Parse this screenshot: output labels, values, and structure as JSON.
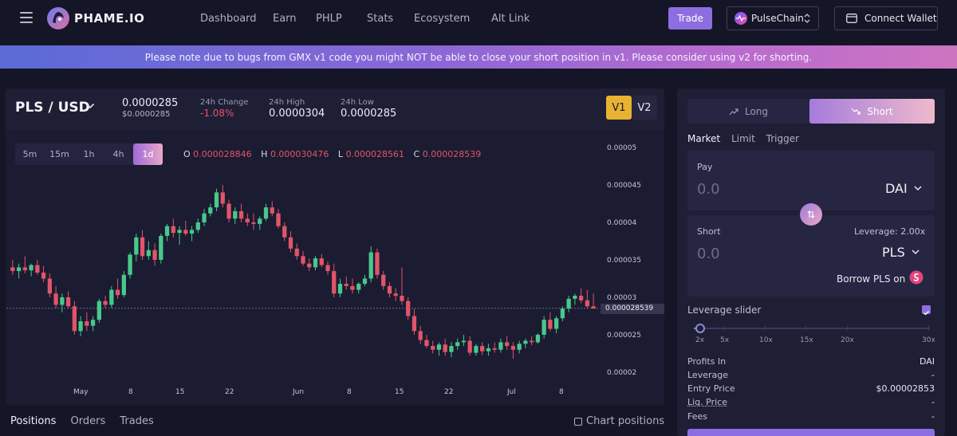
{
  "nav": {
    "brand": "PHAME.IO",
    "items": [
      "Dashboard",
      "Earn",
      "PHLP",
      "Stats",
      "Ecosystem",
      "Alt Link"
    ],
    "trade_label": "Trade",
    "chain_label": "PulseChain",
    "wallet_label": "Connect Wallet"
  },
  "banner": {
    "text": "Please note due to bugs from GMX v1 code you might NOT be able to close your short position in v1. Please consider using v2 for shorting."
  },
  "pair": {
    "name": "PLS / USD",
    "price": "0.0000285",
    "price_usd": "$0.0000285",
    "change_label": "24h Change",
    "change_value": "-1.08%",
    "high_label": "24h High",
    "high_value": "0.0000304",
    "low_label": "24h Low",
    "low_value": "0.0000285",
    "v1": "V1",
    "v2": "V2"
  },
  "timeframes": [
    "5m",
    "15m",
    "1h",
    "4h",
    "1d"
  ],
  "active_timeframe": "1d",
  "ohlc": {
    "o_label": "O",
    "o": "0.000028846",
    "h_label": "H",
    "h": "0.000030476",
    "l_label": "L",
    "l": "0.000028561",
    "c_label": "C",
    "c": "0.000028539"
  },
  "chart_data": {
    "type": "candlestick",
    "y_ticks": [
      "0.00005",
      "0.000045",
      "0.00004",
      "0.000035",
      "0.00003",
      "0.000025",
      "0.00002"
    ],
    "ylim": [
      2e-05,
      5e-05
    ],
    "x_ticks": [
      "May",
      "8",
      "15",
      "22",
      "Jun",
      "8",
      "15",
      "22",
      "Jul",
      "8"
    ],
    "current_price_label": "0.000028539",
    "current_price": 2.8539e-05,
    "colors": {
      "up": "#47c98b",
      "down": "#e0556a"
    },
    "candles": [
      [
        3.4e-05,
        3.5e-05,
        3.3e-05,
        3.35e-05
      ],
      [
        3.35e-05,
        3.45e-05,
        3.25e-05,
        3.4e-05
      ],
      [
        3.4e-05,
        3.55e-05,
        3.32e-05,
        3.36e-05
      ],
      [
        3.36e-05,
        3.45e-05,
        3.28e-05,
        3.43e-05
      ],
      [
        3.43e-05,
        3.5e-05,
        3.3e-05,
        3.33e-05
      ],
      [
        3.33e-05,
        3.42e-05,
        3.2e-05,
        3.25e-05
      ],
      [
        3.25e-05,
        3.32e-05,
        3e-05,
        3.05e-05
      ],
      [
        3.05e-05,
        3.15e-05,
        2.85e-05,
        2.9e-05
      ],
      [
        2.9e-05,
        3.05e-05,
        2.8e-05,
        3e-05
      ],
      [
        3e-05,
        3.08e-05,
        2.85e-05,
        2.88e-05
      ],
      [
        2.88e-05,
        2.95e-05,
        2.5e-05,
        2.55e-05
      ],
      [
        2.55e-05,
        2.75e-05,
        2.48e-05,
        2.68e-05
      ],
      [
        2.68e-05,
        2.8e-05,
        2.55e-05,
        2.62e-05
      ],
      [
        2.62e-05,
        2.75e-05,
        2.55e-05,
        2.7e-05
      ],
      [
        2.7e-05,
        2.98e-05,
        2.66e-05,
        2.95e-05
      ],
      [
        2.95e-05,
        3.02e-05,
        2.85e-05,
        2.9e-05
      ],
      [
        2.9e-05,
        3.15e-05,
        2.86e-05,
        3.1e-05
      ],
      [
        3.1e-05,
        3.25e-05,
        2.98e-05,
        3.03e-05
      ],
      [
        3.03e-05,
        3.35e-05,
        3e-05,
        3.3e-05
      ],
      [
        3.3e-05,
        3.6e-05,
        3.25e-05,
        3.57e-05
      ],
      [
        3.57e-05,
        3.85e-05,
        3.48e-05,
        3.8e-05
      ],
      [
        3.8e-05,
        3.9e-05,
        3.5e-05,
        3.55e-05
      ],
      [
        3.55e-05,
        3.75e-05,
        3.5e-05,
        3.63e-05
      ],
      [
        3.63e-05,
        3.72e-05,
        3.42e-05,
        3.5e-05
      ],
      [
        3.5e-05,
        3.85e-05,
        3.45e-05,
        3.82e-05
      ],
      [
        3.82e-05,
        3.98e-05,
        3.75e-05,
        3.95e-05
      ],
      [
        3.95e-05,
        4.05e-05,
        3.8e-05,
        3.86e-05
      ],
      [
        3.86e-05,
        3.95e-05,
        3.7e-05,
        3.9e-05
      ],
      [
        3.9e-05,
        4.02e-05,
        3.82e-05,
        3.85e-05
      ],
      [
        3.85e-05,
        3.95e-05,
        3.75e-05,
        3.9e-05
      ],
      [
        3.9e-05,
        4.05e-05,
        3.86e-05,
        4e-05
      ],
      [
        4e-05,
        4.18e-05,
        3.95e-05,
        4.12e-05
      ],
      [
        4.12e-05,
        4.25e-05,
        4.08e-05,
        4.2e-05
      ],
      [
        4.2e-05,
        4.45e-05,
        4.15e-05,
        4.4e-05
      ],
      [
        4.4e-05,
        4.5e-05,
        4.2e-05,
        4.25e-05
      ],
      [
        4.25e-05,
        4.3e-05,
        4e-05,
        4.05e-05
      ],
      [
        4.05e-05,
        4.2e-05,
        3.98e-05,
        4.15e-05
      ],
      [
        4.15e-05,
        4.25e-05,
        4e-05,
        4.05e-05
      ],
      [
        4.05e-05,
        4.12e-05,
        3.95e-05,
        4e-05
      ],
      [
        4e-05,
        4.12e-05,
        3.9e-05,
        3.98e-05
      ],
      [
        3.98e-05,
        4.08e-05,
        3.9e-05,
        4.05e-05
      ],
      [
        4.05e-05,
        4.25e-05,
        4.02e-05,
        4.2e-05
      ],
      [
        4.2e-05,
        4.28e-05,
        4.08e-05,
        4.12e-05
      ],
      [
        4.12e-05,
        4.18e-05,
        3.92e-05,
        3.95e-05
      ],
      [
        3.95e-05,
        4e-05,
        3.75e-05,
        3.8e-05
      ],
      [
        3.8e-05,
        3.88e-05,
        3.6e-05,
        3.65e-05
      ],
      [
        3.65e-05,
        3.72e-05,
        3.5e-05,
        3.55e-05
      ],
      [
        3.55e-05,
        3.62e-05,
        3.42e-05,
        3.45e-05
      ],
      [
        3.45e-05,
        3.52e-05,
        3.35e-05,
        3.4e-05
      ],
      [
        3.4e-05,
        3.55e-05,
        3.36e-05,
        3.52e-05
      ],
      [
        3.52e-05,
        3.58e-05,
        3.4e-05,
        3.43e-05
      ],
      [
        3.43e-05,
        3.48e-05,
        3.3e-05,
        3.35e-05
      ],
      [
        3.35e-05,
        3.45e-05,
        3e-05,
        3.05e-05
      ],
      [
        3.05e-05,
        3.25e-05,
        3e-05,
        3.18e-05
      ],
      [
        3.18e-05,
        3.28e-05,
        3.1e-05,
        3.15e-05
      ],
      [
        3.15e-05,
        3.25e-05,
        3.05e-05,
        3.1e-05
      ],
      [
        3.1e-05,
        3.2e-05,
        3.05e-05,
        3.18e-05
      ],
      [
        3.18e-05,
        3.3e-05,
        3.15e-05,
        3.25e-05
      ],
      [
        3.25e-05,
        3.68e-05,
        3.2e-05,
        3.6e-05
      ],
      [
        3.6e-05,
        3.65e-05,
        3.25e-05,
        3.3e-05
      ],
      [
        3.3e-05,
        3.35e-05,
        3.1e-05,
        3.15e-05
      ],
      [
        3.15e-05,
        3.2e-05,
        3e-05,
        3.05e-05
      ],
      [
        3.05e-05,
        3.12e-05,
        2.95e-05,
        3.02e-05
      ],
      [
        3.02e-05,
        3.4e-05,
        2.9e-05,
        2.95e-05
      ],
      [
        2.95e-05,
        3e-05,
        2.7e-05,
        2.75e-05
      ],
      [
        2.75e-05,
        2.85e-05,
        2.5e-05,
        2.55e-05
      ],
      [
        2.55e-05,
        2.62e-05,
        2.38e-05,
        2.43e-05
      ],
      [
        2.43e-05,
        2.5e-05,
        2.32e-05,
        2.35e-05
      ],
      [
        2.35e-05,
        2.42e-05,
        2.25e-05,
        2.3e-05
      ],
      [
        2.3e-05,
        2.4e-05,
        2.22e-05,
        2.37e-05
      ],
      [
        2.37e-05,
        2.45e-05,
        2.22e-05,
        2.27e-05
      ],
      [
        2.27e-05,
        2.4e-05,
        2.2e-05,
        2.35e-05
      ],
      [
        2.35e-05,
        2.45e-05,
        2.3e-05,
        2.4e-05
      ],
      [
        2.4e-05,
        2.5e-05,
        2.35e-05,
        2.42e-05
      ],
      [
        2.42e-05,
        2.48e-05,
        2.22e-05,
        2.26e-05
      ],
      [
        2.26e-05,
        2.38e-05,
        2.22e-05,
        2.35e-05
      ],
      [
        2.35e-05,
        2.4e-05,
        2.23e-05,
        2.28e-05
      ],
      [
        2.28e-05,
        2.38e-05,
        2.22e-05,
        2.32e-05
      ],
      [
        2.32e-05,
        2.4e-05,
        2.26e-05,
        2.3e-05
      ],
      [
        2.3e-05,
        2.45e-05,
        2.26e-05,
        2.4e-05
      ],
      [
        2.4e-05,
        2.48e-05,
        2.3e-05,
        2.35e-05
      ],
      [
        2.35e-05,
        2.4e-05,
        2.18e-05,
        2.3e-05
      ],
      [
        2.3e-05,
        2.42e-05,
        2.25e-05,
        2.38e-05
      ],
      [
        2.38e-05,
        2.45e-05,
        2.32e-05,
        2.42e-05
      ],
      [
        2.42e-05,
        2.48e-05,
        2.36e-05,
        2.4e-05
      ],
      [
        2.4e-05,
        2.52e-05,
        2.38e-05,
        2.5e-05
      ],
      [
        2.5e-05,
        2.75e-05,
        2.45e-05,
        2.7e-05
      ],
      [
        2.7e-05,
        2.8e-05,
        2.55e-05,
        2.58e-05
      ],
      [
        2.58e-05,
        2.75e-05,
        2.52e-05,
        2.72e-05
      ],
      [
        2.72e-05,
        2.88e-05,
        2.68e-05,
        2.85e-05
      ],
      [
        2.85e-05,
        3.02e-05,
        2.8e-05,
        2.98e-05
      ],
      [
        2.98e-05,
        3.05e-05,
        2.9e-05,
        3.02e-05
      ],
      [
        3.02e-05,
        3.12e-05,
        2.92e-05,
        2.96e-05
      ],
      [
        2.96e-05,
        3.1e-05,
        2.85e-05,
        2.88e-05
      ],
      [
        2.88e-05,
        3.05e-05,
        2.85e-05,
        2.85e-05
      ]
    ]
  },
  "bottom": {
    "tabs": [
      "Positions",
      "Orders",
      "Trades"
    ],
    "chart_positions_label": "Chart positions"
  },
  "trade": {
    "long_label": "Long",
    "short_label": "Short",
    "order_types": [
      "Market",
      "Limit",
      "Trigger"
    ],
    "pay_label": "Pay",
    "pay_amount_placeholder": "0.0",
    "pay_token": "DAI",
    "short_label_field": "Short",
    "leverage_label": "Leverage: 2.00x",
    "short_amount_placeholder": "0.0",
    "short_token": "PLS",
    "borrow_label": "Borrow PLS on",
    "leverage_slider_label": "Leverage slider",
    "leverage_ticks": [
      "2x",
      "5x",
      "10x",
      "15x",
      "20x",
      "30x"
    ],
    "leverage_value": 2,
    "info": [
      {
        "label": "Profits In",
        "value": "DAI"
      },
      {
        "label": "Leverage",
        "value": "-"
      },
      {
        "label": "Entry Price",
        "value": "$0.00002853"
      },
      {
        "label": "Liq. Price",
        "value": "-"
      },
      {
        "label": "Fees",
        "value": "-"
      }
    ]
  }
}
